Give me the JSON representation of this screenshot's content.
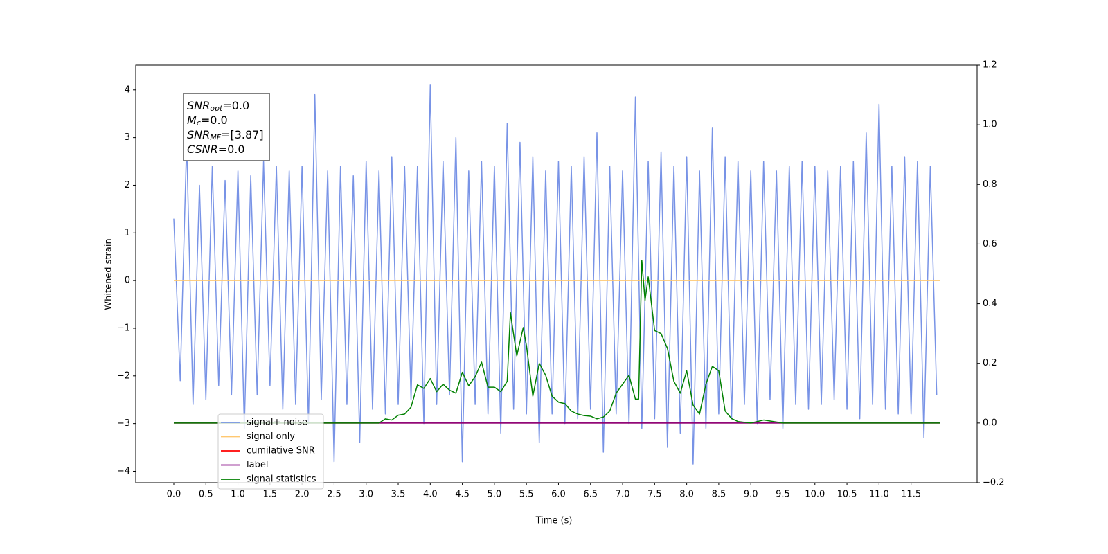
{
  "chart_data": {
    "type": "line",
    "xlabel": "Time (s)",
    "ylabel": "Whitened strain",
    "xlim": [
      -0.594,
      12.53
    ],
    "ylim": [
      -4.24,
      4.52
    ],
    "y2lim": [
      -0.2,
      1.2
    ],
    "xticks": [
      {
        "value": 0,
        "label": "0.0"
      },
      0.5,
      {
        "value": 1,
        "label": "1.0"
      },
      1.5,
      {
        "value": 2,
        "label": "2.0"
      },
      2.5,
      {
        "value": 3,
        "label": "3.0"
      },
      3.5,
      {
        "value": 4,
        "label": "4.0"
      },
      4.5,
      {
        "value": 5,
        "label": "5.0"
      },
      5.5,
      {
        "value": 6,
        "label": "6.0"
      },
      6.5,
      {
        "value": 7,
        "label": "7.0"
      },
      7.5,
      {
        "value": 8,
        "label": "8.0"
      },
      8.5,
      {
        "value": 9,
        "label": "9.0"
      },
      9.5,
      {
        "value": 10,
        "label": "10.0"
      },
      10.5,
      {
        "value": 11,
        "label": "11.0"
      },
      11.5
    ],
    "yticks": [
      {
        "value": -4,
        "label": "−4"
      },
      {
        "value": -3,
        "label": "−3"
      },
      {
        "value": -2,
        "label": "−2"
      },
      {
        "value": -1,
        "label": "−1"
      },
      0,
      1,
      2,
      3,
      4
    ],
    "y2ticks": [
      {
        "value": -0.2,
        "label": "−0.2"
      },
      {
        "value": 0,
        "label": "0.0"
      },
      0.2,
      0.4,
      0.6,
      0.8,
      {
        "value": 1,
        "label": "1.0"
      },
      1.2
    ],
    "legend": "lower left",
    "annotation": [
      {
        "symbol": "SNR",
        "sub": "opt",
        "text": "=0.0"
      },
      {
        "symbol": "M",
        "sub": "c",
        "text": "=0.0"
      },
      {
        "symbol": "SNR",
        "sub": "MF",
        "text": "=[3.87]"
      },
      {
        "symbol": "CSNR",
        "sub": "",
        "text": "=0.0"
      }
    ],
    "series": [
      {
        "name": "signal+ noise",
        "color": "#7893e6",
        "axis": "y",
        "x": [
          0,
          0.1,
          0.2,
          0.3,
          0.4,
          0.5,
          0.6,
          0.7,
          0.8,
          0.9,
          1,
          1.1,
          1.2,
          1.3,
          1.4,
          1.5,
          1.6,
          1.7,
          1.8,
          1.9,
          2,
          2.1,
          2.2,
          2.3,
          2.4,
          2.5,
          2.6,
          2.7,
          2.8,
          2.9,
          3,
          3.1,
          3.2,
          3.3,
          3.4,
          3.5,
          3.6,
          3.7,
          3.8,
          3.9,
          4,
          4.1,
          4.2,
          4.3,
          4.4,
          4.5,
          4.6,
          4.7,
          4.8,
          4.9,
          5,
          5.1,
          5.2,
          5.3,
          5.4,
          5.5,
          5.6,
          5.7,
          5.8,
          5.9,
          6,
          6.1,
          6.2,
          6.3,
          6.4,
          6.5,
          6.6,
          6.7,
          6.8,
          6.9,
          7,
          7.1,
          7.2,
          7.3,
          7.4,
          7.5,
          7.6,
          7.7,
          7.8,
          7.9,
          8,
          8.1,
          8.2,
          8.3,
          8.4,
          8.5,
          8.6,
          8.7,
          8.8,
          8.9,
          9,
          9.1,
          9.2,
          9.3,
          9.4,
          9.5,
          9.6,
          9.7,
          9.8,
          9.9,
          10,
          10.1,
          10.2,
          10.3,
          10.4,
          10.5,
          10.6,
          10.7,
          10.8,
          10.9,
          11,
          11.1,
          11.2,
          11.3,
          11.4,
          11.5,
          11.6,
          11.7,
          11.8,
          11.9
        ],
        "values": [
          1.3,
          -2.1,
          2.9,
          -2.6,
          2.0,
          -2.5,
          2.4,
          -2.2,
          2.1,
          -2.4,
          2.3,
          -3.1,
          2.2,
          -2.4,
          2.5,
          -2.2,
          2.4,
          -2.7,
          2.3,
          -2.6,
          2.4,
          -3.0,
          3.9,
          -2.5,
          2.3,
          -3.8,
          2.4,
          -2.6,
          2.2,
          -3.4,
          2.5,
          -2.7,
          2.3,
          -2.8,
          2.6,
          -2.6,
          2.4,
          -2.5,
          2.4,
          -3.0,
          4.1,
          -2.6,
          2.5,
          -2.4,
          3.0,
          -3.8,
          2.3,
          -2.6,
          2.5,
          -2.8,
          2.4,
          -3.2,
          3.3,
          -2.7,
          2.9,
          -2.8,
          2.6,
          -3.4,
          2.3,
          -2.8,
          2.5,
          -3.0,
          2.4,
          -2.9,
          2.6,
          -2.7,
          3.1,
          -3.6,
          2.4,
          -2.8,
          2.3,
          -3.0,
          3.85,
          -3.1,
          2.5,
          -2.9,
          2.7,
          -3.5,
          2.4,
          -3.2,
          2.6,
          -3.85,
          2.3,
          -3.1,
          3.2,
          -2.8,
          2.6,
          -2.9,
          2.5,
          -2.6,
          2.3,
          -3.0,
          2.5,
          -2.5,
          2.3,
          -3.1,
          2.4,
          -2.6,
          2.5,
          -2.7,
          2.4,
          -2.6,
          2.3,
          -2.5,
          2.4,
          -2.7,
          2.5,
          -2.9,
          3.1,
          -2.6,
          3.7,
          -2.7,
          2.4,
          -2.8,
          2.6,
          -2.8,
          2.5,
          -3.3,
          2.4,
          -2.4
        ]
      },
      {
        "name": "signal only",
        "color": "#ffc870",
        "axis": "y",
        "x": [
          0,
          11.95
        ],
        "values": [
          0,
          0
        ]
      },
      {
        "name": "cumilative SNR",
        "color": "#ff0000",
        "axis": "y2",
        "x": [
          0,
          11.95
        ],
        "values": [
          0,
          0
        ]
      },
      {
        "name": "label",
        "color": "#800080",
        "axis": "y2",
        "x": [
          0,
          11.95
        ],
        "values": [
          0,
          0
        ]
      },
      {
        "name": "signal statistics",
        "color": "#008000",
        "axis": "y2",
        "x": [
          0,
          3.2,
          3.3,
          3.4,
          3.5,
          3.6,
          3.7,
          3.8,
          3.9,
          4.0,
          4.1,
          4.2,
          4.3,
          4.4,
          4.5,
          4.6,
          4.7,
          4.8,
          4.9,
          5.0,
          5.1,
          5.2,
          5.25,
          5.35,
          5.45,
          5.5,
          5.6,
          5.7,
          5.8,
          5.9,
          6.0,
          6.1,
          6.2,
          6.3,
          6.4,
          6.5,
          6.6,
          6.7,
          6.8,
          6.9,
          7.0,
          7.1,
          7.2,
          7.25,
          7.3,
          7.35,
          7.4,
          7.5,
          7.6,
          7.7,
          7.8,
          7.9,
          8.0,
          8.1,
          8.2,
          8.3,
          8.4,
          8.5,
          8.6,
          8.7,
          8.8,
          9.0,
          9.2,
          9.5,
          11.95
        ],
        "values": [
          0,
          0,
          0.014,
          0.01,
          0.026,
          0.03,
          0.053,
          0.128,
          0.116,
          0.149,
          0.105,
          0.13,
          0.11,
          0.1,
          0.17,
          0.125,
          0.155,
          0.204,
          0.12,
          0.12,
          0.105,
          0.14,
          0.37,
          0.225,
          0.32,
          0.26,
          0.09,
          0.2,
          0.16,
          0.09,
          0.07,
          0.065,
          0.04,
          0.03,
          0.025,
          0.023,
          0.014,
          0.02,
          0.04,
          0.1,
          0.13,
          0.16,
          0.08,
          0.08,
          0.545,
          0.41,
          0.49,
          0.31,
          0.3,
          0.25,
          0.14,
          0.1,
          0.175,
          0.06,
          0.03,
          0.13,
          0.19,
          0.175,
          0.04,
          0.015,
          0.005,
          0,
          0.01,
          0,
          0
        ]
      }
    ]
  }
}
